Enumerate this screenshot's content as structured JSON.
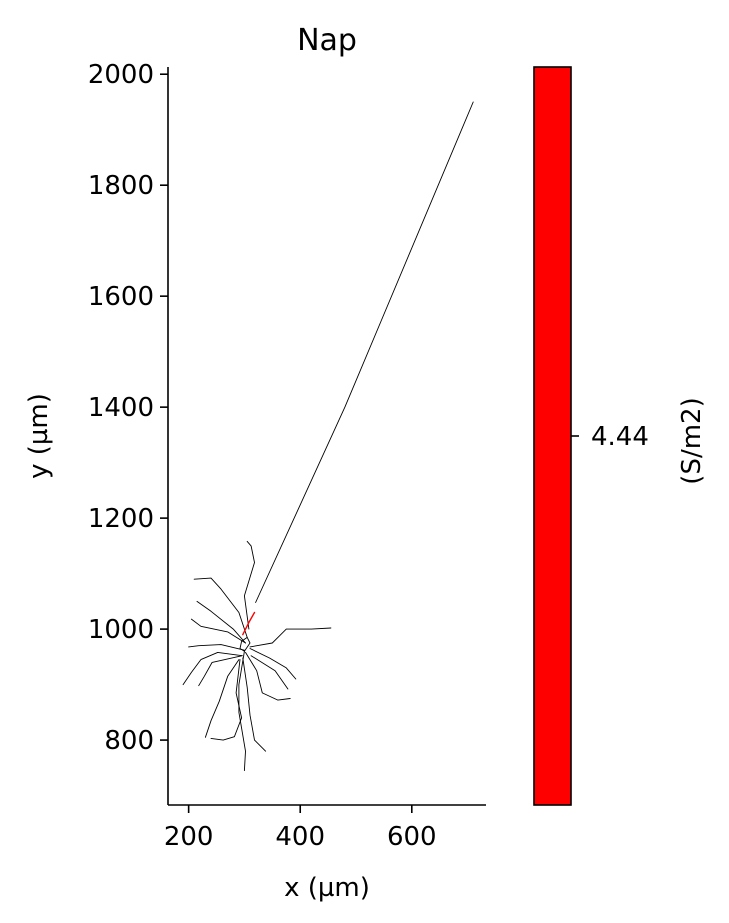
{
  "chart_data": {
    "type": "line",
    "title": "Nap",
    "xlabel": "x (µm)",
    "ylabel": "y (µm)",
    "xlim": [
      163,
      733
    ],
    "ylim": [
      683,
      2013
    ],
    "x_ticks": [
      200,
      400,
      600
    ],
    "y_ticks": [
      800,
      1000,
      1200,
      1400,
      1600,
      1800,
      2000
    ],
    "grid": false,
    "series": [
      {
        "role": "axon",
        "color": "#000000",
        "points": [
          [
            320,
            1048
          ],
          [
            480,
            1400
          ],
          [
            710,
            1950
          ]
        ]
      },
      {
        "role": "dendrites",
        "color": "#000000",
        "branches": [
          [
            [
              302,
              975
            ],
            [
              280,
              1000
            ],
            [
              240,
              1032
            ],
            [
              215,
              1050
            ]
          ],
          [
            [
              302,
              975
            ],
            [
              270,
              995
            ],
            [
              222,
              1005
            ],
            [
              205,
              1018
            ]
          ],
          [
            [
              305,
              985
            ],
            [
              290,
              1030
            ],
            [
              258,
              1072
            ],
            [
              240,
              1092
            ],
            [
              210,
              1090
            ]
          ],
          [
            [
              308,
              1000
            ],
            [
              300,
              1060
            ],
            [
              318,
              1120
            ],
            [
              312,
              1150
            ],
            [
              305,
              1158
            ]
          ],
          [
            [
              310,
              968
            ],
            [
              350,
              975
            ],
            [
              375,
              1000
            ],
            [
              420,
              1000
            ],
            [
              455,
              1002
            ]
          ],
          [
            [
              310,
              965
            ],
            [
              345,
              948
            ],
            [
              375,
              930
            ],
            [
              392,
              910
            ]
          ],
          [
            [
              302,
              958
            ],
            [
              322,
              925
            ],
            [
              332,
              885
            ],
            [
              360,
              872
            ],
            [
              382,
              875
            ]
          ],
          [
            [
              297,
              948
            ],
            [
              305,
              895
            ],
            [
              310,
              845
            ],
            [
              318,
              800
            ],
            [
              338,
              780
            ]
          ],
          [
            [
              292,
              945
            ],
            [
              285,
              885
            ],
            [
              295,
              840
            ],
            [
              282,
              806
            ],
            [
              262,
              800
            ],
            [
              240,
              803
            ]
          ],
          [
            [
              290,
              945
            ],
            [
              270,
              915
            ],
            [
              255,
              870
            ],
            [
              240,
              835
            ],
            [
              230,
              805
            ]
          ],
          [
            [
              300,
              960
            ],
            [
              290,
              900
            ],
            [
              290,
              850
            ],
            [
              302,
              780
            ],
            [
              300,
              745
            ]
          ],
          [
            [
              296,
              952
            ],
            [
              252,
              958
            ],
            [
              222,
              945
            ],
            [
              205,
              922
            ],
            [
              190,
              900
            ]
          ],
          [
            [
              296,
              952
            ],
            [
              242,
              940
            ],
            [
              228,
              915
            ],
            [
              218,
              898
            ]
          ],
          [
            [
              300,
              962
            ],
            [
              258,
              972
            ],
            [
              218,
              970
            ],
            [
              200,
              968
            ]
          ],
          [
            [
              312,
              952
            ],
            [
              355,
              925
            ],
            [
              378,
              892
            ]
          ]
        ]
      },
      {
        "role": "soma",
        "color": "#000000",
        "points": [
          [
            300,
            960
          ],
          [
            310,
            975
          ],
          [
            305,
            985
          ],
          [
            295,
            978
          ],
          [
            292,
            965
          ],
          [
            300,
            960
          ]
        ]
      },
      {
        "role": "axon-initial-segment",
        "color": "#ff0000",
        "points": [
          [
            297,
            990
          ],
          [
            308,
            1012
          ],
          [
            318,
            1030
          ]
        ]
      }
    ],
    "colorbar": {
      "color": "#ff0000",
      "tick_label": "4.44",
      "label": "(S/m2)",
      "orientation": "vertical"
    }
  }
}
